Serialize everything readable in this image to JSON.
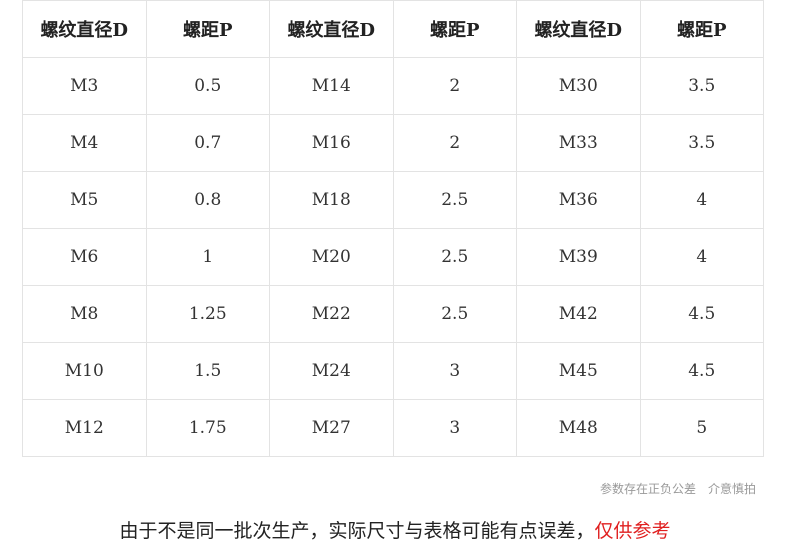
{
  "table": {
    "headers": [
      "螺纹直径D",
      "螺距P",
      "螺纹直径D",
      "螺距P",
      "螺纹直径D",
      "螺距P"
    ],
    "rows": [
      [
        "M3",
        "0.5",
        "M14",
        "2",
        "M30",
        "3.5"
      ],
      [
        "M4",
        "0.7",
        "M16",
        "2",
        "M33",
        "3.5"
      ],
      [
        "M5",
        "0.8",
        "M18",
        "2.5",
        "M36",
        "4"
      ],
      [
        "M6",
        "1",
        "M20",
        "2.5",
        "M39",
        "4"
      ],
      [
        "M8",
        "1.25",
        "M22",
        "2.5",
        "M42",
        "4.5"
      ],
      [
        "M10",
        "1.5",
        "M24",
        "3",
        "M45",
        "4.5"
      ],
      [
        "M12",
        "1.75",
        "M27",
        "3",
        "M48",
        "5"
      ]
    ]
  },
  "note": {
    "a": "参数存在正负公差",
    "b": "介意慎拍"
  },
  "footer": {
    "text": "由于不是同一批次生产，实际尺寸与表格可能有点误差，",
    "highlight": "仅供参考",
    "highlight_color": "#e02020"
  }
}
